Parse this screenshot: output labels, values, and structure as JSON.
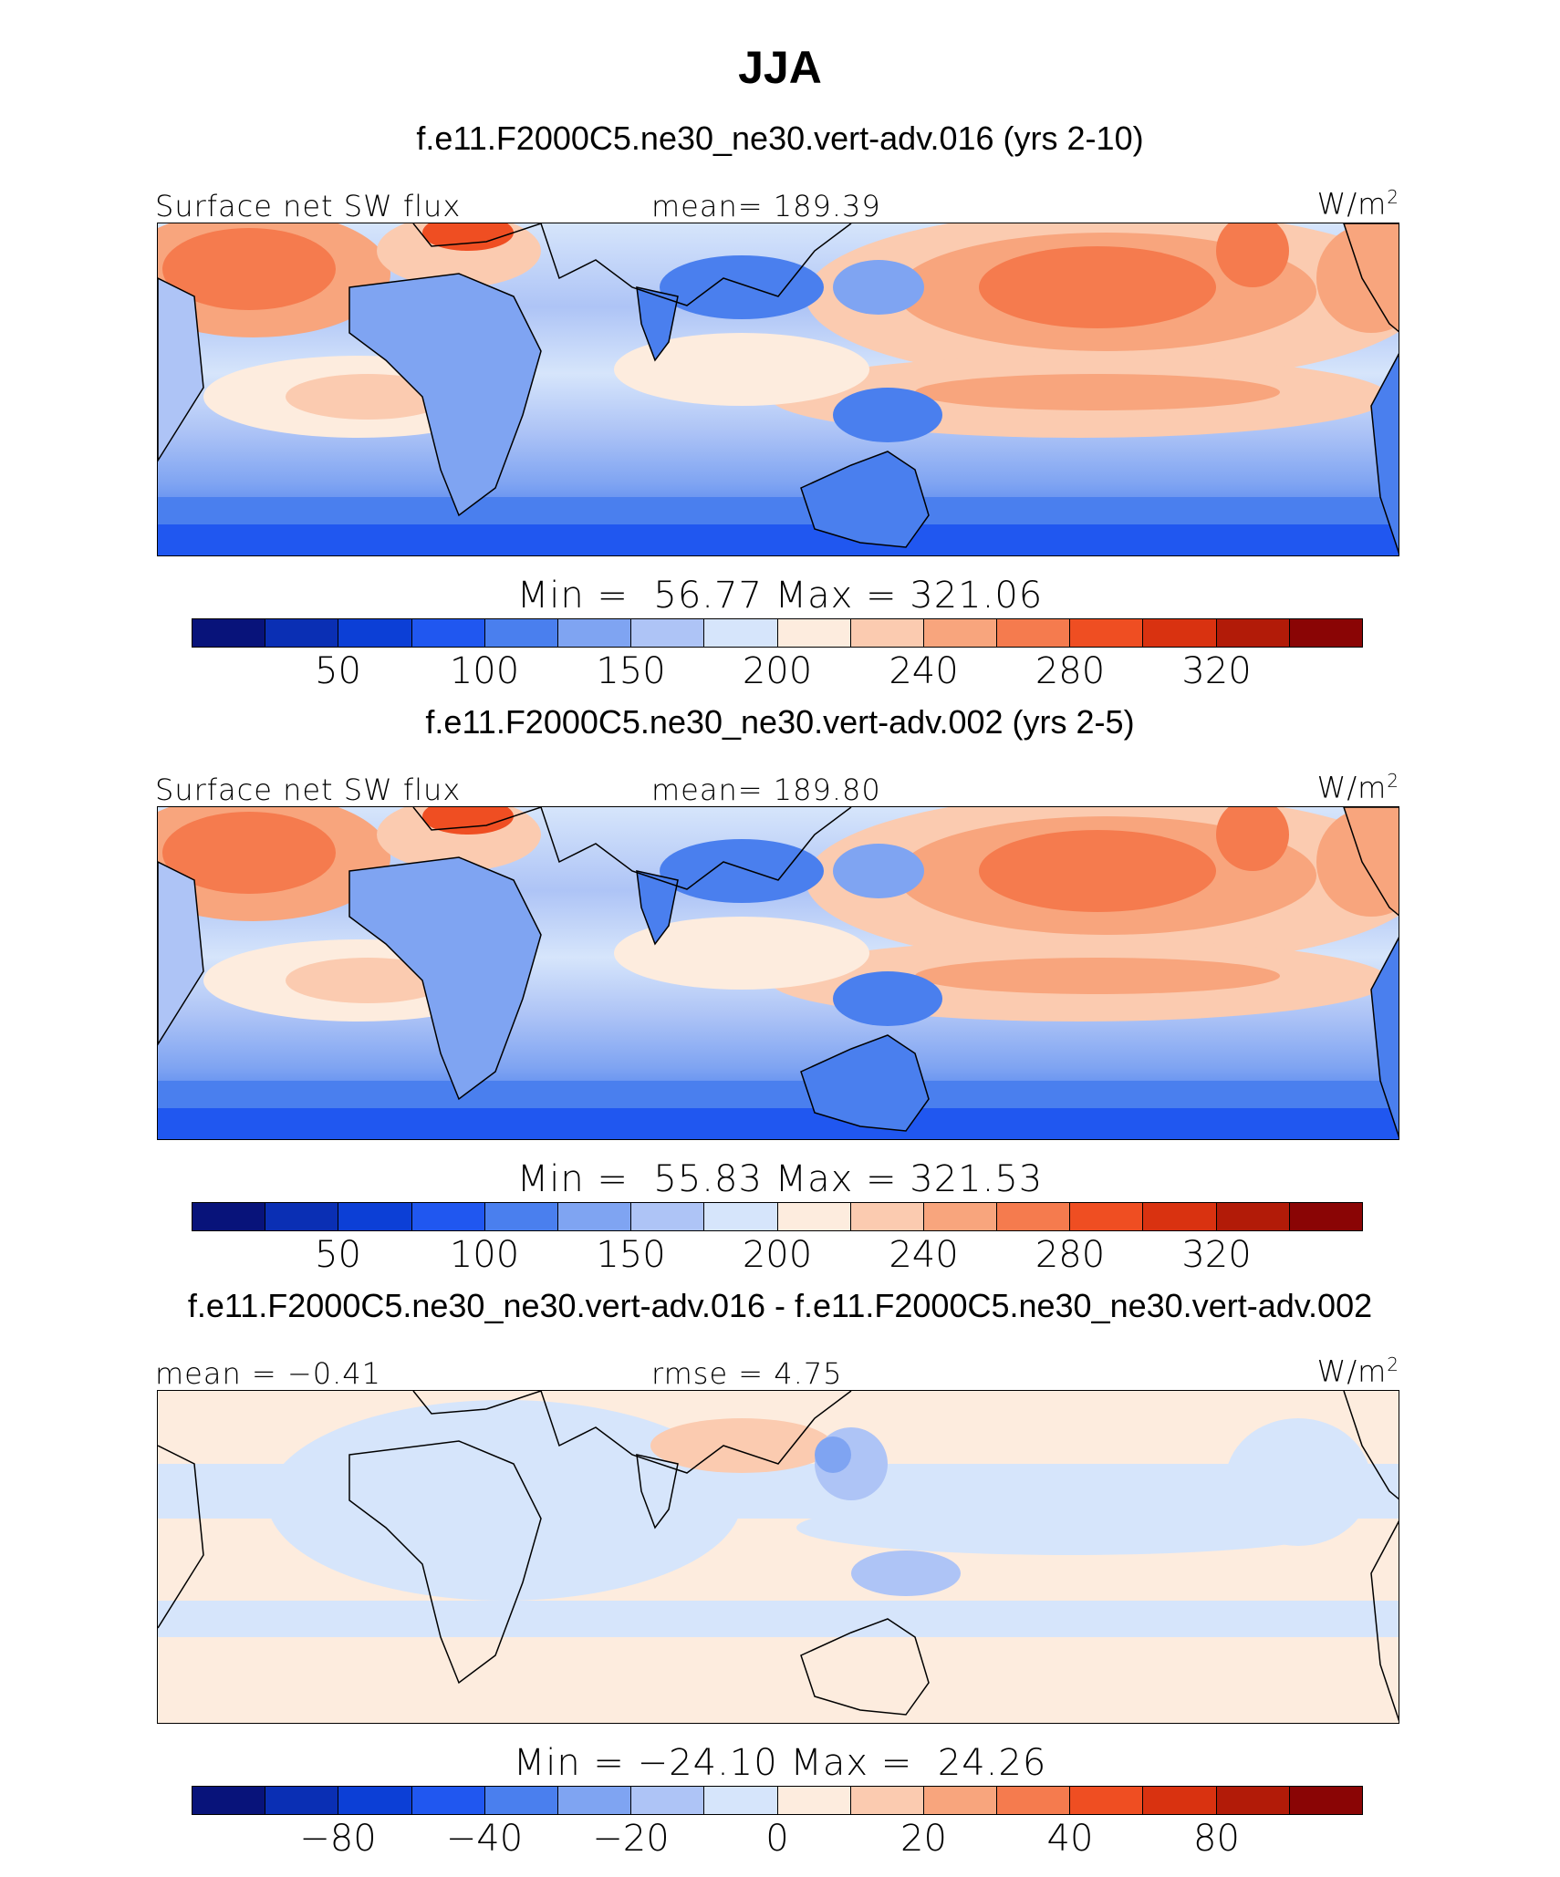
{
  "title": "JJA",
  "colors": {
    "palette": [
      "#08137a",
      "#0a2fb4",
      "#0c3fd6",
      "#2057f0",
      "#4a7fee",
      "#7fa4f2",
      "#aec4f6",
      "#d6e5fb",
      "#fdecde",
      "#fbcbb0",
      "#f8a57d",
      "#f57b4e",
      "#ef4e22",
      "#d93210",
      "#b21b08",
      "#8a0505"
    ]
  },
  "panels": [
    {
      "case_title": "f.e11.F2000C5.ne30_ne30.vert-adv.016 (yrs 2-10)",
      "left_label": "Surface net SW flux",
      "center_label": "mean= 189.39",
      "units": "W/m",
      "units_exp": "2",
      "min_max": "Min =  56.77 Max = 321.06",
      "colorbar_ticks": [
        "50",
        "100",
        "150",
        "200",
        "240",
        "280",
        "320"
      ]
    },
    {
      "case_title": "f.e11.F2000C5.ne30_ne30.vert-adv.002 (yrs 2-5)",
      "left_label": "Surface net SW flux",
      "center_label": "mean= 189.80",
      "units": "W/m",
      "units_exp": "2",
      "min_max": "Min =  55.83 Max = 321.53",
      "colorbar_ticks": [
        "50",
        "100",
        "150",
        "200",
        "240",
        "280",
        "320"
      ]
    },
    {
      "case_title": "f.e11.F2000C5.ne30_ne30.vert-adv.016 - f.e11.F2000C5.ne30_ne30.vert-adv.002",
      "left_label": "mean =  −0.41",
      "center_label": "rmse =    4.75",
      "units": "W/m",
      "units_exp": "2",
      "min_max": "Min = −24.10 Max =  24.26",
      "colorbar_ticks": [
        "−80",
        "−40",
        "−20",
        "0",
        "20",
        "40",
        "80"
      ]
    }
  ]
}
